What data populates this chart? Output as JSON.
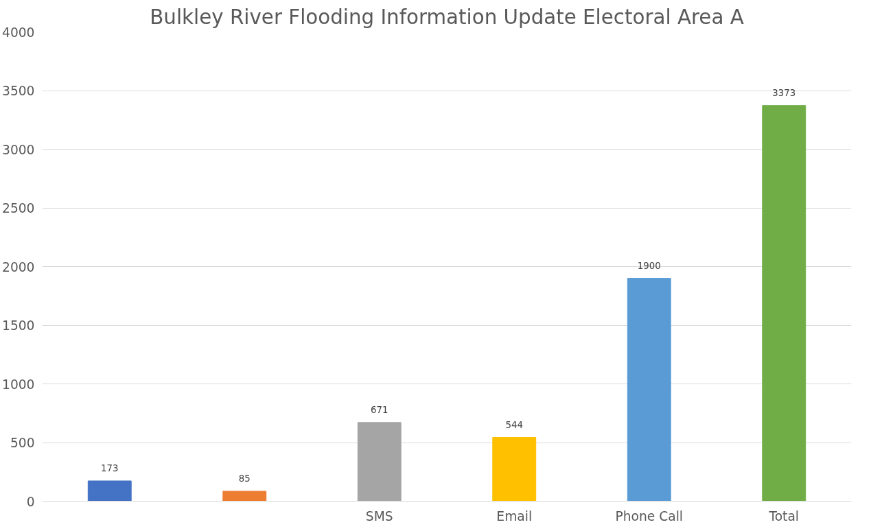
{
  "chart_data": {
    "type": "bar",
    "title": "Bulkley River Flooding Information Update Electoral Area A",
    "categories": [
      null,
      null,
      "SMS",
      "Email",
      "Phone Call",
      "Total"
    ],
    "values": [
      173,
      85,
      671,
      544,
      1900,
      3373
    ],
    "colors": [
      "#4472c4",
      "#ed7d31",
      "#a5a5a5",
      "#ffc000",
      "#5b9bd5",
      "#70ad47"
    ],
    "ylim": [
      0,
      4000
    ],
    "yticks": [
      0,
      500,
      1000,
      1500,
      2000,
      2500,
      3000,
      3500,
      4000
    ],
    "grid": "y",
    "data_labels": true
  }
}
